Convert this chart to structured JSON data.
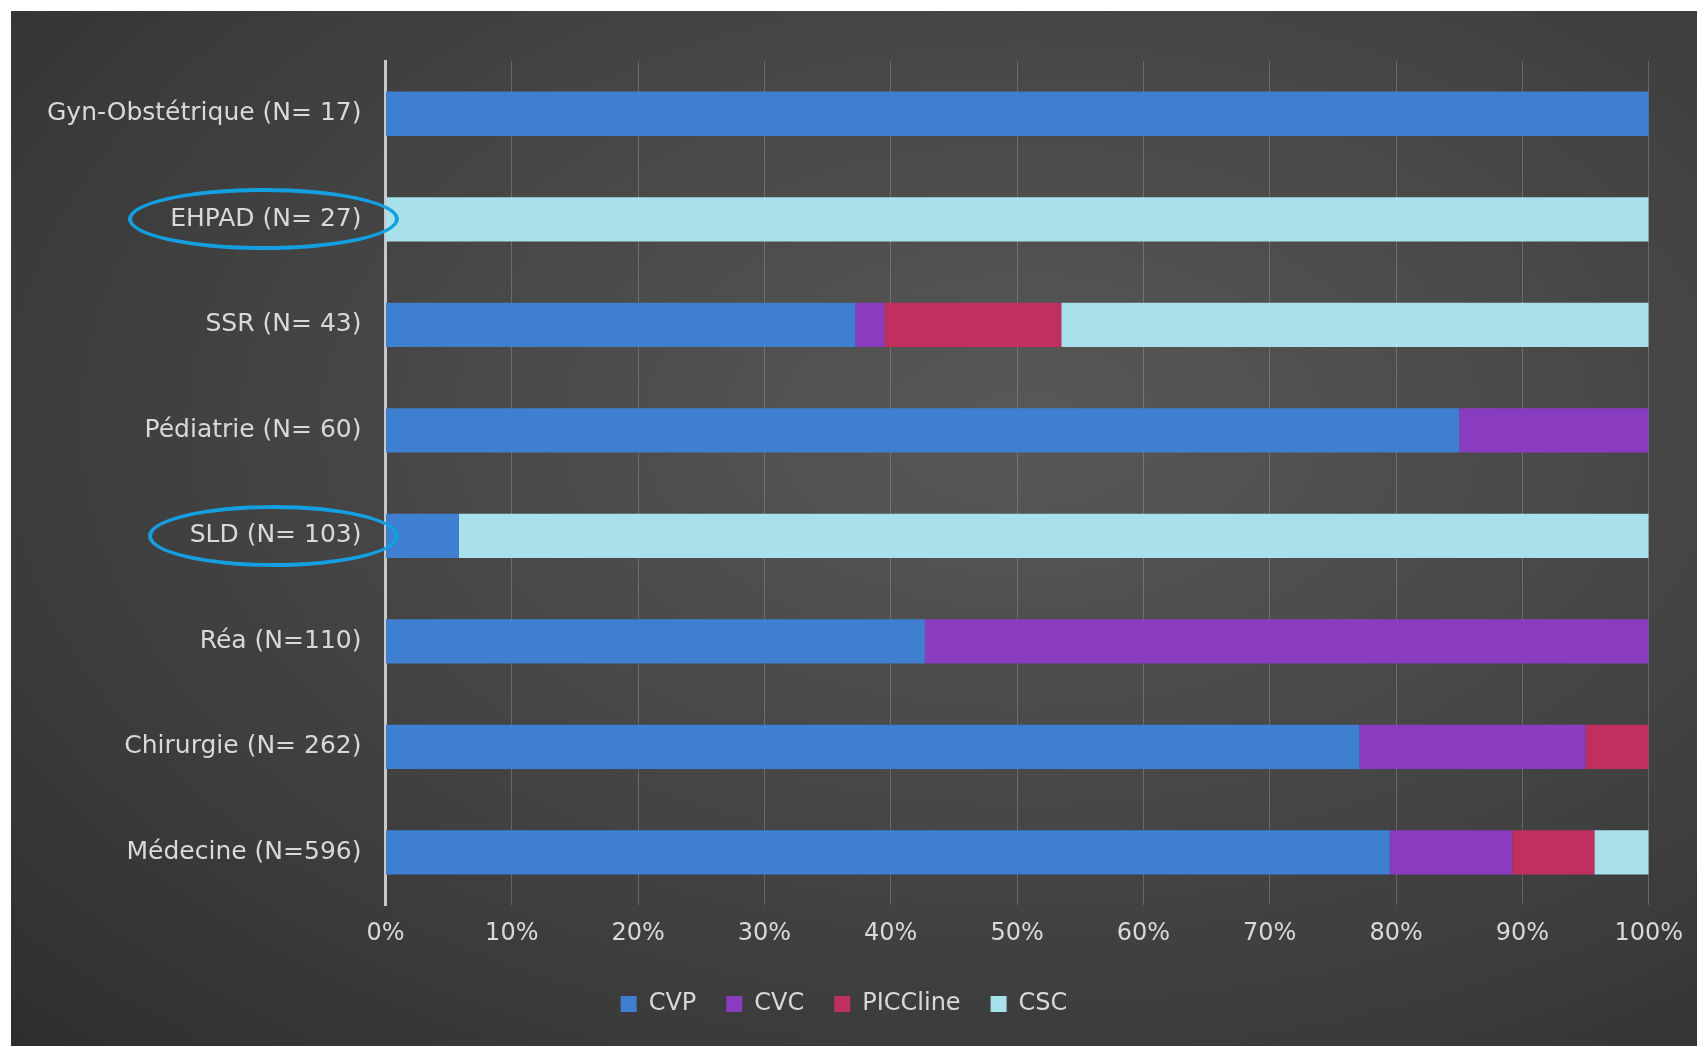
{
  "chart_data": {
    "type": "bar",
    "orientation": "horizontal",
    "stacked": true,
    "categories": [
      "Gyn-Obstétrique (N= 17)",
      "EHPAD (N= 27)",
      "SSR (N= 43)",
      "Pédiatrie (N= 60)",
      "SLD (N= 103)",
      "Réa (N=110)",
      "Chirurgie (N= 262)",
      "Médecine (N=596)"
    ],
    "series": [
      {
        "name": "CVP",
        "color": "#3f7fd0",
        "values": [
          100,
          0,
          37.2,
          85,
          5.8,
          42.7,
          77.1,
          79.5
        ]
      },
      {
        "name": "CVC",
        "color": "#8a3cc0",
        "values": [
          0,
          0,
          2.3,
          15,
          0,
          57.3,
          17.9,
          9.7
        ]
      },
      {
        "name": "PICCline",
        "color": "#c0305f",
        "values": [
          0,
          0,
          14.0,
          0,
          0,
          0,
          5.0,
          6.5
        ]
      },
      {
        "name": "CSC",
        "color": "#a8e0ec",
        "values": [
          0,
          100,
          46.5,
          0,
          94.2,
          0,
          0,
          4.3
        ]
      }
    ],
    "xlim": [
      0,
      100
    ],
    "xticks": [
      {
        "value": 0,
        "label": "0%"
      },
      {
        "value": 10,
        "label": "10%"
      },
      {
        "value": 20,
        "label": "20%"
      },
      {
        "value": 30,
        "label": "30%"
      },
      {
        "value": 40,
        "label": "40%"
      },
      {
        "value": 50,
        "label": "50%"
      },
      {
        "value": 60,
        "label": "60%"
      },
      {
        "value": 70,
        "label": "70%"
      },
      {
        "value": 80,
        "label": "80%"
      },
      {
        "value": 90,
        "label": "90%"
      },
      {
        "value": 100,
        "label": "100%"
      }
    ],
    "grid": "x",
    "legend": "bottom"
  }
}
